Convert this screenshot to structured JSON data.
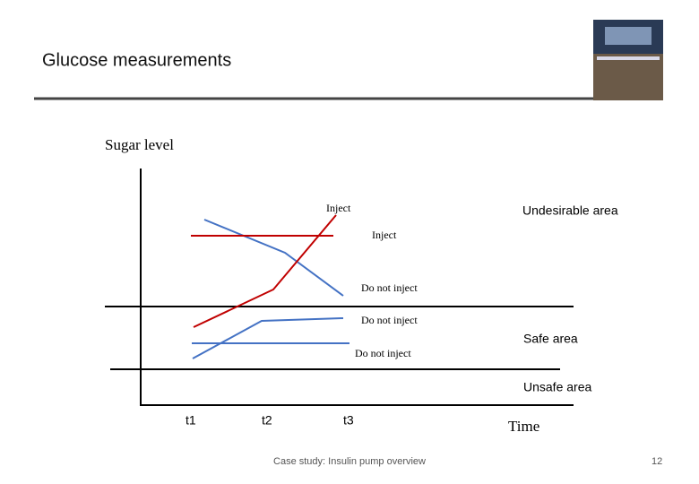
{
  "header": {
    "title": "Glucose measurements"
  },
  "diagram": {
    "y_axis_label": "Sugar level",
    "x_axis_label": "Time",
    "areas": [
      "Undesirable area",
      "Safe area",
      "Unsafe area"
    ],
    "annotations": [
      "Inject",
      "Inject",
      "Do not inject",
      "Do not inject",
      "Do not inject"
    ],
    "time_labels": [
      "t1",
      "t2",
      "t3"
    ]
  },
  "footer": {
    "text": "Case study: Insulin pump overview",
    "page": "12"
  }
}
